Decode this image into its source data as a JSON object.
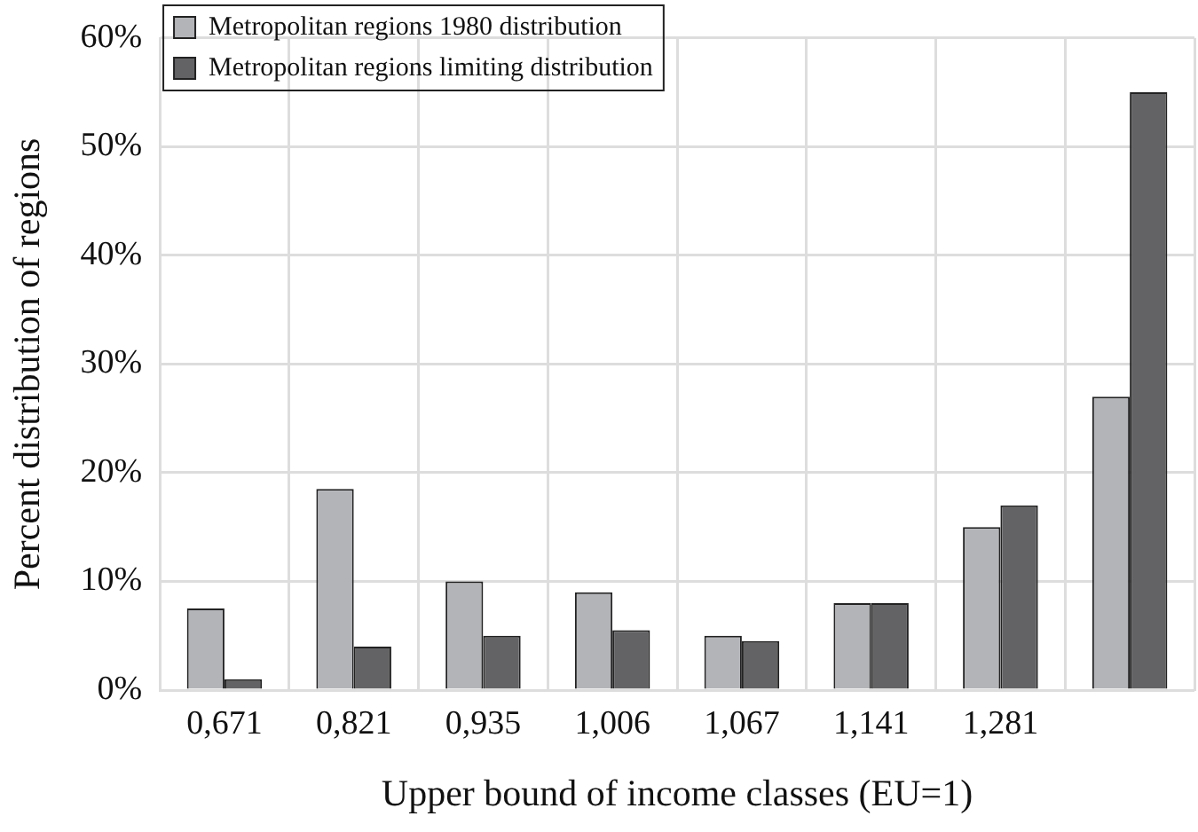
{
  "chart_data": {
    "type": "bar",
    "xlabel": "Upper bound of income classes (EU=1)",
    "ylabel": "Percent distribution of regions",
    "categories": [
      "0,671",
      "0,821",
      "0,935",
      "1,006",
      "1,067",
      "1,141",
      "1,281",
      null
    ],
    "series": [
      {
        "name": "Metropolitan regions 1980 distribution",
        "color": "#b3b4b8",
        "values": [
          7.5,
          18.5,
          10,
          9,
          5,
          8,
          15,
          27
        ]
      },
      {
        "name": "Metropolitan regions limiting distribution",
        "color": "#636365",
        "values": [
          1,
          4,
          5,
          5.5,
          4.5,
          8,
          17,
          55
        ]
      }
    ],
    "ylim": [
      0,
      60
    ],
    "yticks": [
      {
        "value": 0,
        "label": "0%"
      },
      {
        "value": 10,
        "label": "10%"
      },
      {
        "value": 20,
        "label": "20%"
      },
      {
        "value": 30,
        "label": "30%"
      },
      {
        "value": 40,
        "label": "40%"
      },
      {
        "value": 50,
        "label": "50%"
      },
      {
        "value": 60,
        "label": "60%"
      }
    ],
    "grid": true,
    "legend": "top left"
  }
}
